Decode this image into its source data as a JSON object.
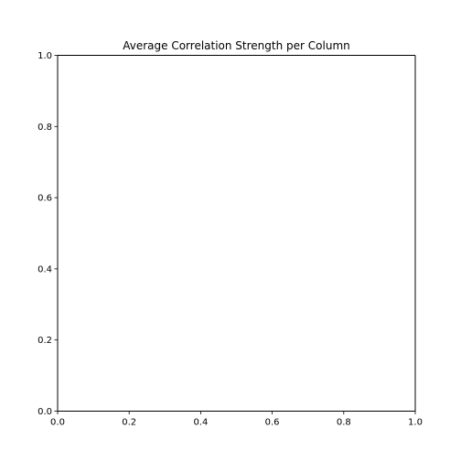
{
  "chart_data": {
    "type": "bar",
    "title": "Average Correlation Strength per Column",
    "xlabel": "",
    "ylabel": "",
    "xlim": [
      0.0,
      1.0
    ],
    "ylim": [
      0.0,
      1.0
    ],
    "x_ticks": [
      "0.0",
      "0.2",
      "0.4",
      "0.6",
      "0.8",
      "1.0"
    ],
    "y_ticks": [
      "0.0",
      "0.2",
      "0.4",
      "0.6",
      "0.8",
      "1.0"
    ],
    "categories": [],
    "values": [],
    "grid": false,
    "legend": "none"
  }
}
